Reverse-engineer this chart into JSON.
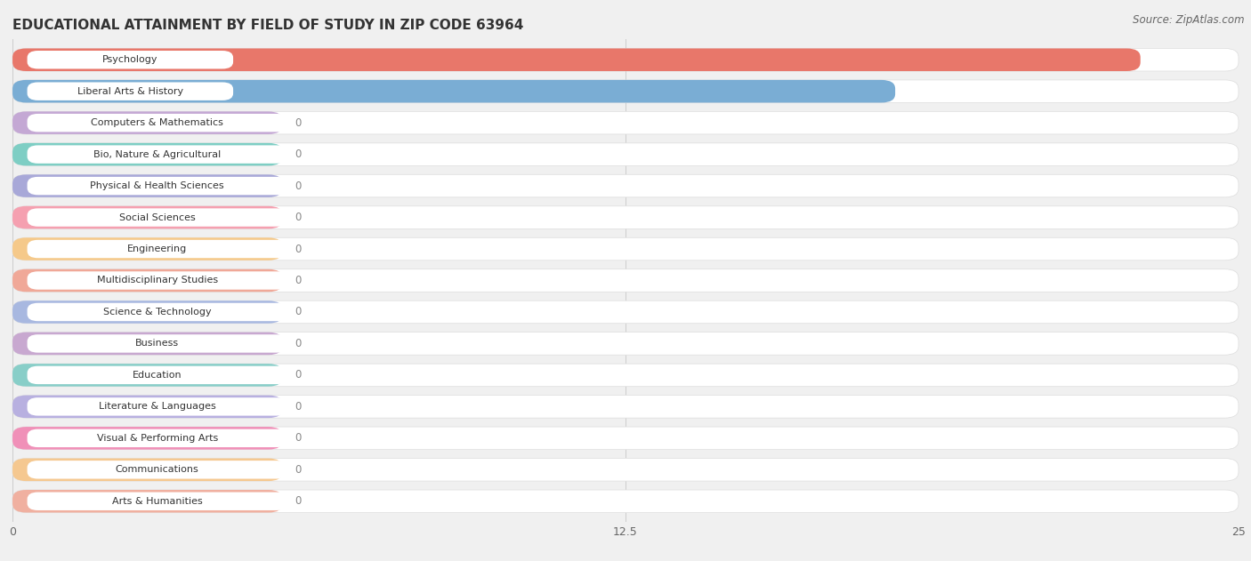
{
  "title": "EDUCATIONAL ATTAINMENT BY FIELD OF STUDY IN ZIP CODE 63964",
  "source": "Source: ZipAtlas.com",
  "categories": [
    "Psychology",
    "Liberal Arts & History",
    "Computers & Mathematics",
    "Bio, Nature & Agricultural",
    "Physical & Health Sciences",
    "Social Sciences",
    "Engineering",
    "Multidisciplinary Studies",
    "Science & Technology",
    "Business",
    "Education",
    "Literature & Languages",
    "Visual & Performing Arts",
    "Communications",
    "Arts & Humanities"
  ],
  "values": [
    23,
    18,
    0,
    0,
    0,
    0,
    0,
    0,
    0,
    0,
    0,
    0,
    0,
    0,
    0
  ],
  "bar_colors": [
    "#E8776A",
    "#7AADD4",
    "#C4A8D4",
    "#7ECEC4",
    "#A8A8D8",
    "#F5A0B0",
    "#F5C98A",
    "#F0A898",
    "#A8B8E0",
    "#C8A8D0",
    "#88CEC8",
    "#B8B0E0",
    "#F090B8",
    "#F5C890",
    "#F0B0A0"
  ],
  "label_bg_colors": [
    "#E8776A",
    "#7AADD4",
    "#C4A8D4",
    "#7ECEC4",
    "#A8A8D8",
    "#F5A0B0",
    "#F5C98A",
    "#F0A898",
    "#A8B8E0",
    "#C8A8D0",
    "#88CEC8",
    "#B8B0E0",
    "#F090B8",
    "#F5C890",
    "#F0B0A0"
  ],
  "xlim": [
    0,
    25
  ],
  "xticks": [
    0,
    12.5,
    25
  ],
  "background_color": "#f0f0f0",
  "bar_bg_color": "#ffffff",
  "bar_row_bg": "#f5f5f5",
  "title_fontsize": 11,
  "source_fontsize": 8.5,
  "zero_bar_width": 5.5
}
